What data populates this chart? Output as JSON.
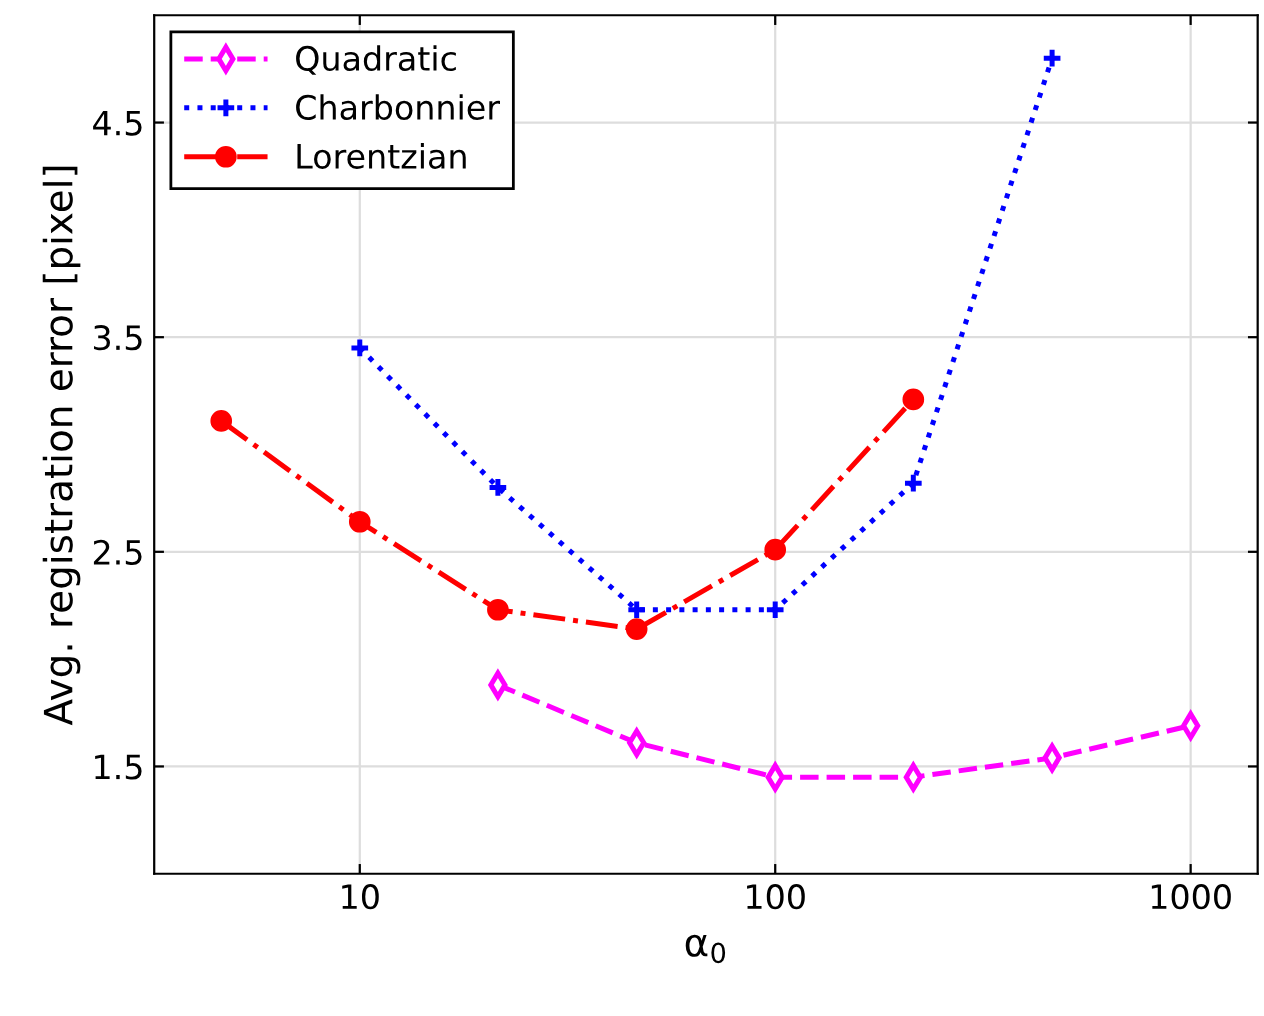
{
  "chart_data": {
    "type": "line",
    "xlabel": "α$_{0}$",
    "ylabel": "Avg. registration error [pixel]",
    "log": "x",
    "xlim": [
      3.2,
      1450
    ],
    "xticks": [
      10,
      100,
      1000
    ],
    "ylim": [
      1.0,
      5.0
    ],
    "yticks": [
      1.5,
      2.5,
      3.5,
      4.5
    ],
    "grid": true,
    "legend": "top left",
    "series": [
      {
        "name": "Quadratic",
        "color": "#ff00ff",
        "marker": "diamond",
        "line_style": "dashed",
        "x": [
          21.5,
          46.4,
          100,
          215,
          464,
          1000
        ],
        "values": [
          1.88,
          1.61,
          1.45,
          1.45,
          1.54,
          1.69
        ]
      },
      {
        "name": "Charbonnier",
        "color": "#0000ff",
        "marker": "cross",
        "line_style": "dotted",
        "x": [
          10,
          21.5,
          46.4,
          100,
          215,
          464
        ],
        "values": [
          3.45,
          2.8,
          2.23,
          2.23,
          2.82,
          4.8
        ]
      },
      {
        "name": "Lorentzian",
        "color": "#ff0000",
        "marker": "circle",
        "line_style": "dashdot",
        "x": [
          4.64,
          10,
          21.5,
          46.4,
          100,
          215
        ],
        "values": [
          3.11,
          2.64,
          2.23,
          2.14,
          2.51,
          3.21
        ]
      }
    ]
  }
}
